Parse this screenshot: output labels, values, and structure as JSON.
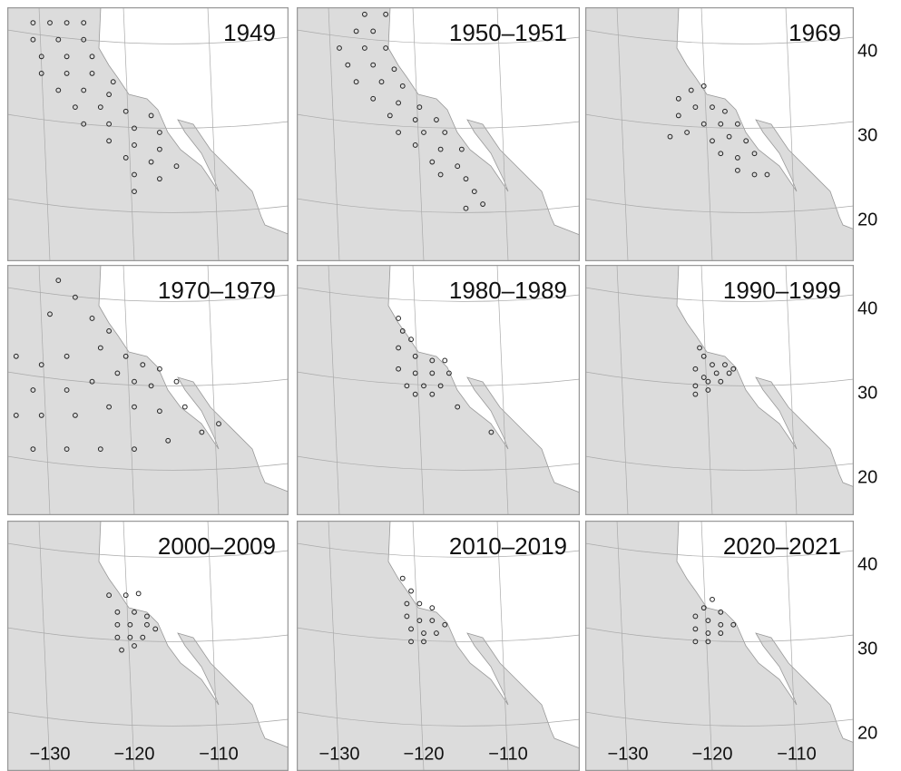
{
  "panels": [
    {
      "title": "1949",
      "stations": [
        [
          -132,
          43
        ],
        [
          -130,
          43
        ],
        [
          -128,
          43
        ],
        [
          -126,
          43
        ],
        [
          -132,
          41
        ],
        [
          -129,
          41
        ],
        [
          -126,
          41
        ],
        [
          -131,
          39
        ],
        [
          -128,
          39
        ],
        [
          -125,
          39
        ],
        [
          -131,
          37
        ],
        [
          -128,
          37
        ],
        [
          -125,
          37
        ],
        [
          -122.5,
          36
        ],
        [
          -129,
          35
        ],
        [
          -126,
          35
        ],
        [
          -123,
          34.5
        ],
        [
          -127,
          33
        ],
        [
          -124,
          33
        ],
        [
          -121,
          32.5
        ],
        [
          -118,
          32
        ],
        [
          -126,
          31
        ],
        [
          -123,
          31
        ],
        [
          -120,
          30.5
        ],
        [
          -117,
          30
        ],
        [
          -123,
          29
        ],
        [
          -120,
          28.5
        ],
        [
          -117,
          28
        ],
        [
          -121,
          27
        ],
        [
          -118,
          26.5
        ],
        [
          -115,
          26
        ],
        [
          -120,
          25
        ],
        [
          -117,
          24.5
        ],
        [
          -120,
          23
        ]
      ]
    },
    {
      "title": "1950–1951",
      "stations": [
        [
          -127,
          44
        ],
        [
          -124.5,
          44
        ],
        [
          -128,
          42
        ],
        [
          -126,
          42
        ],
        [
          -130,
          40
        ],
        [
          -127,
          40
        ],
        [
          -124.5,
          40
        ],
        [
          -129,
          38
        ],
        [
          -126,
          38
        ],
        [
          -123.5,
          37.5
        ],
        [
          -128,
          36
        ],
        [
          -125,
          36
        ],
        [
          -122.5,
          35.5
        ],
        [
          -126,
          34
        ],
        [
          -123,
          33.5
        ],
        [
          -120.5,
          33
        ],
        [
          -124,
          32
        ],
        [
          -121,
          31.5
        ],
        [
          -118.5,
          31.5
        ],
        [
          -123,
          30
        ],
        [
          -120,
          30
        ],
        [
          -117.5,
          30
        ],
        [
          -121,
          28.5
        ],
        [
          -118,
          28
        ],
        [
          -115.5,
          28
        ],
        [
          -119,
          26.5
        ],
        [
          -116,
          26
        ],
        [
          -118,
          25
        ],
        [
          -115,
          24.5
        ],
        [
          -114,
          23
        ],
        [
          -113,
          21.5
        ],
        [
          -115,
          21
        ]
      ]
    },
    {
      "title": "1969",
      "stations": [
        [
          -124,
          34
        ],
        [
          -122.5,
          35
        ],
        [
          -121,
          35.5
        ],
        [
          -124,
          32
        ],
        [
          -122,
          33
        ],
        [
          -120,
          33
        ],
        [
          -118.5,
          32.5
        ],
        [
          -123,
          30
        ],
        [
          -121,
          31
        ],
        [
          -119,
          31
        ],
        [
          -117,
          31
        ],
        [
          -120,
          29
        ],
        [
          -118,
          29.5
        ],
        [
          -116,
          29
        ],
        [
          -119,
          27.5
        ],
        [
          -117,
          27
        ],
        [
          -115,
          27.5
        ],
        [
          -117,
          25.5
        ],
        [
          -115,
          25
        ],
        [
          -113.5,
          25
        ],
        [
          -125,
          29.5
        ]
      ]
    },
    {
      "title": "1970–1979",
      "stations": [
        [
          -129,
          43
        ],
        [
          -127,
          41
        ],
        [
          -130,
          39
        ],
        [
          -125,
          38.5
        ],
        [
          -123,
          37
        ],
        [
          -134,
          34
        ],
        [
          -131,
          33
        ],
        [
          -128,
          34
        ],
        [
          -124,
          35
        ],
        [
          -121,
          34
        ],
        [
          -119,
          33
        ],
        [
          -117,
          32.5
        ],
        [
          -132,
          30
        ],
        [
          -128,
          30
        ],
        [
          -125,
          31
        ],
        [
          -122,
          32
        ],
        [
          -120,
          31
        ],
        [
          -118,
          30.5
        ],
        [
          -115,
          31
        ],
        [
          -134,
          27
        ],
        [
          -131,
          27
        ],
        [
          -127,
          27
        ],
        [
          -123,
          28
        ],
        [
          -120,
          28
        ],
        [
          -117,
          27.5
        ],
        [
          -114,
          28
        ],
        [
          -132,
          23
        ],
        [
          -128,
          23
        ],
        [
          -124,
          23
        ],
        [
          -120,
          23
        ],
        [
          -116,
          24
        ],
        [
          -112,
          25
        ],
        [
          -110,
          26
        ]
      ]
    },
    {
      "title": "1980–1989",
      "stations": [
        [
          -123,
          38.5
        ],
        [
          -122.5,
          37
        ],
        [
          -121.5,
          36
        ],
        [
          -123,
          35
        ],
        [
          -121,
          34
        ],
        [
          -119,
          33.5
        ],
        [
          -117.5,
          33.5
        ],
        [
          -123,
          32.5
        ],
        [
          -121,
          32
        ],
        [
          -119,
          32
        ],
        [
          -117,
          32
        ],
        [
          -122,
          30.5
        ],
        [
          -120,
          30.5
        ],
        [
          -118,
          30.5
        ],
        [
          -121,
          29.5
        ],
        [
          -119,
          29.5
        ],
        [
          -116,
          28
        ],
        [
          -112,
          25
        ]
      ]
    },
    {
      "title": "1990–1999",
      "stations": [
        [
          -121.5,
          35
        ],
        [
          -121,
          34
        ],
        [
          -120,
          33
        ],
        [
          -118.5,
          33
        ],
        [
          -117.5,
          32.5
        ],
        [
          -122,
          32.5
        ],
        [
          -121,
          31.5
        ],
        [
          -119.5,
          32
        ],
        [
          -118,
          32
        ],
        [
          -122,
          30.5
        ],
        [
          -120.5,
          31
        ],
        [
          -119,
          31
        ],
        [
          -122,
          29.5
        ],
        [
          -120.5,
          30
        ]
      ]
    },
    {
      "title": "2000–2009",
      "stations": [
        [
          -123,
          36
        ],
        [
          -121,
          36
        ],
        [
          -119.5,
          36.2
        ],
        [
          -122,
          34
        ],
        [
          -120,
          34
        ],
        [
          -118.5,
          33.5
        ],
        [
          -122,
          32.5
        ],
        [
          -120.5,
          32.5
        ],
        [
          -118.5,
          32.5
        ],
        [
          -117.5,
          32
        ],
        [
          -122,
          31
        ],
        [
          -120.5,
          31
        ],
        [
          -119,
          31
        ],
        [
          -121.5,
          29.5
        ],
        [
          -120,
          30
        ]
      ]
    },
    {
      "title": "2010–2019",
      "stations": [
        [
          -122.5,
          38
        ],
        [
          -121.5,
          36.5
        ],
        [
          -122,
          35
        ],
        [
          -120.5,
          35
        ],
        [
          -119,
          34.5
        ],
        [
          -122,
          33.5
        ],
        [
          -120.5,
          33
        ],
        [
          -119,
          33
        ],
        [
          -117.5,
          32.5
        ],
        [
          -121.5,
          32
        ],
        [
          -120,
          31.5
        ],
        [
          -118.5,
          31.5
        ],
        [
          -121.5,
          30.5
        ],
        [
          -120,
          30.5
        ]
      ]
    },
    {
      "title": "2020–2021",
      "stations": [
        [
          -120,
          35.5
        ],
        [
          -121,
          34.5
        ],
        [
          -119,
          34
        ],
        [
          -122,
          33.5
        ],
        [
          -120.5,
          33
        ],
        [
          -119,
          32.5
        ],
        [
          -117.5,
          32.5
        ],
        [
          -122,
          32
        ],
        [
          -120.5,
          31.5
        ],
        [
          -119,
          31.5
        ],
        [
          -122,
          30.5
        ],
        [
          -120.5,
          30.5
        ]
      ]
    }
  ],
  "lat_ticks": [
    40,
    30,
    20
  ],
  "lon_ticks": [
    {
      "value": -130,
      "label": "−130"
    },
    {
      "value": -120,
      "label": "−120"
    },
    {
      "value": -110,
      "label": "−110"
    }
  ]
}
